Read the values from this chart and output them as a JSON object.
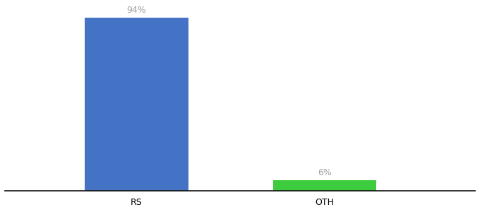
{
  "categories": [
    "RS",
    "OTH"
  ],
  "values": [
    94,
    6
  ],
  "bar_colors": [
    "#4472c4",
    "#3dcc3d"
  ],
  "label_texts": [
    "94%",
    "6%"
  ],
  "background_color": "#ffffff",
  "ylim": [
    0,
    100
  ],
  "x_positions": [
    1,
    2
  ],
  "bar_width": 0.55,
  "xlim": [
    0.3,
    2.8
  ],
  "label_fontsize": 9,
  "tick_fontsize": 9,
  "label_color": "#a0a0a0",
  "spine_color": "#111111"
}
